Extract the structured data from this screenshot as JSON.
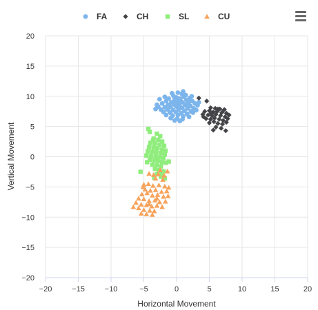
{
  "menu": {
    "icon": "hamburger-menu-icon"
  },
  "chart_data": {
    "type": "scatter",
    "title": "",
    "xlabel": "Horizontal Movement",
    "ylabel": "Vertical Movement",
    "xlim": [
      -20,
      20
    ],
    "ylim": [
      -20,
      20
    ],
    "x_ticks": [
      "−20",
      "−15",
      "−10",
      "−5",
      "0",
      "5",
      "10",
      "15",
      "20"
    ],
    "y_ticks": [
      "20",
      "15",
      "10",
      "5",
      "0",
      "−5",
      "−10",
      "−15",
      "−20"
    ],
    "grid": true,
    "legend_position": "top",
    "series": [
      {
        "name": "FA",
        "color": "#7cb5ec",
        "marker": "circle",
        "points": [
          [
            0.2,
            10.6
          ],
          [
            0.8,
            10.4
          ],
          [
            1.4,
            10.2
          ],
          [
            -0.5,
            10.1
          ],
          [
            0.0,
            9.8
          ],
          [
            1.1,
            9.9
          ],
          [
            2.0,
            9.7
          ],
          [
            -1.2,
            9.6
          ],
          [
            -0.3,
            9.5
          ],
          [
            0.5,
            9.6
          ],
          [
            1.5,
            9.4
          ],
          [
            2.4,
            9.2
          ],
          [
            -1.6,
            9.2
          ],
          [
            -0.8,
            9.0
          ],
          [
            0.1,
            9.1
          ],
          [
            0.9,
            9.0
          ],
          [
            1.8,
            8.9
          ],
          [
            2.8,
            8.8
          ],
          [
            -2.2,
            8.8
          ],
          [
            -1.3,
            8.6
          ],
          [
            -0.4,
            8.7
          ],
          [
            0.4,
            8.6
          ],
          [
            1.3,
            8.5
          ],
          [
            2.1,
            8.4
          ],
          [
            3.2,
            8.5
          ],
          [
            -2.8,
            8.3
          ],
          [
            -1.8,
            8.2
          ],
          [
            -0.9,
            8.2
          ],
          [
            0.0,
            8.3
          ],
          [
            0.8,
            8.1
          ],
          [
            1.7,
            8.0
          ],
          [
            2.6,
            8.0
          ],
          [
            -3.2,
            7.9
          ],
          [
            -2.4,
            7.8
          ],
          [
            -1.4,
            7.8
          ],
          [
            -0.5,
            7.7
          ],
          [
            0.3,
            7.8
          ],
          [
            1.2,
            7.6
          ],
          [
            2.2,
            7.5
          ],
          [
            3.0,
            7.7
          ],
          [
            -2.0,
            7.4
          ],
          [
            -1.0,
            7.3
          ],
          [
            -0.1,
            7.4
          ],
          [
            0.7,
            7.2
          ],
          [
            1.6,
            7.1
          ],
          [
            2.5,
            7.3
          ],
          [
            -1.6,
            6.9
          ],
          [
            -0.6,
            6.8
          ],
          [
            0.2,
            6.9
          ],
          [
            1.0,
            6.7
          ],
          [
            1.9,
            6.6
          ],
          [
            -0.9,
            6.4
          ],
          [
            0.1,
            6.3
          ],
          [
            0.9,
            6.2
          ],
          [
            -0.3,
            6.0
          ],
          [
            0.5,
            5.9
          ],
          [
            -1.8,
            9.9
          ],
          [
            2.3,
            10.0
          ],
          [
            -2.6,
            9.5
          ],
          [
            3.4,
            9.0
          ],
          [
            -3.0,
            8.6
          ],
          [
            1.0,
            10.8
          ],
          [
            -0.7,
            10.5
          ],
          [
            0.4,
            8.0
          ],
          [
            -0.2,
            8.5
          ],
          [
            1.5,
            8.7
          ],
          [
            -1.1,
            8.4
          ],
          [
            0.6,
            9.3
          ],
          [
            -0.4,
            9.1
          ],
          [
            1.9,
            9.1
          ]
        ]
      },
      {
        "name": "CH",
        "color": "#434348",
        "marker": "diamond",
        "points": [
          [
            3.4,
            9.7
          ],
          [
            4.6,
            9.2
          ],
          [
            5.2,
            8.1
          ],
          [
            5.9,
            8.0
          ],
          [
            6.6,
            7.9
          ],
          [
            7.3,
            7.8
          ],
          [
            4.3,
            7.5
          ],
          [
            5.0,
            7.6
          ],
          [
            5.6,
            7.4
          ],
          [
            6.2,
            7.5
          ],
          [
            6.9,
            7.3
          ],
          [
            7.6,
            7.2
          ],
          [
            4.0,
            7.0
          ],
          [
            4.8,
            6.9
          ],
          [
            5.4,
            6.8
          ],
          [
            6.0,
            7.0
          ],
          [
            6.7,
            6.8
          ],
          [
            7.4,
            6.6
          ],
          [
            8.0,
            6.9
          ],
          [
            4.5,
            6.3
          ],
          [
            5.2,
            6.2
          ],
          [
            5.8,
            6.4
          ],
          [
            6.5,
            6.2
          ],
          [
            7.1,
            6.0
          ],
          [
            7.8,
            6.3
          ],
          [
            5.0,
            5.6
          ],
          [
            5.7,
            5.8
          ],
          [
            6.3,
            5.5
          ],
          [
            7.0,
            5.4
          ],
          [
            7.6,
            5.7
          ],
          [
            6.0,
            4.9
          ],
          [
            6.8,
            4.7
          ],
          [
            7.5,
            4.3
          ],
          [
            5.6,
            4.4
          ],
          [
            6.3,
            7.9
          ],
          [
            5.3,
            7.2
          ],
          [
            4.1,
            6.6
          ],
          [
            7.2,
            7.7
          ]
        ]
      },
      {
        "name": "SL",
        "color": "#90ed7d",
        "marker": "square",
        "points": [
          [
            -4.3,
            4.6
          ],
          [
            -4.1,
            4.1
          ],
          [
            -3.0,
            3.8
          ],
          [
            -2.5,
            3.4
          ],
          [
            -3.5,
            3.0
          ],
          [
            -2.8,
            2.8
          ],
          [
            -2.2,
            2.5
          ],
          [
            -4.0,
            2.3
          ],
          [
            -3.3,
            2.2
          ],
          [
            -2.6,
            2.0
          ],
          [
            -1.9,
            1.8
          ],
          [
            -4.2,
            1.6
          ],
          [
            -3.5,
            1.5
          ],
          [
            -2.9,
            1.4
          ],
          [
            -2.2,
            1.2
          ],
          [
            -1.7,
            1.0
          ],
          [
            -4.4,
            0.9
          ],
          [
            -3.7,
            0.8
          ],
          [
            -3.1,
            0.7
          ],
          [
            -2.4,
            0.6
          ],
          [
            -1.8,
            0.4
          ],
          [
            -4.6,
            0.2
          ],
          [
            -3.9,
            0.1
          ],
          [
            -3.2,
            0.0
          ],
          [
            -2.6,
            -0.1
          ],
          [
            -2.0,
            -0.2
          ],
          [
            -4.1,
            -0.5
          ],
          [
            -3.4,
            -0.6
          ],
          [
            -2.8,
            -0.7
          ],
          [
            -2.2,
            -0.9
          ],
          [
            -1.6,
            -1.0
          ],
          [
            -3.7,
            -1.3
          ],
          [
            -3.0,
            -1.4
          ],
          [
            -2.4,
            -1.6
          ],
          [
            -3.3,
            -2.0
          ],
          [
            -2.7,
            -2.2
          ],
          [
            -2.0,
            -2.4
          ],
          [
            -5.5,
            -2.5
          ],
          [
            -3.0,
            -2.9
          ],
          [
            -2.4,
            -3.3
          ],
          [
            -1.8,
            -3.6
          ],
          [
            -3.4,
            -3.5
          ],
          [
            -1.2,
            -0.8
          ],
          [
            -3.6,
            2.7
          ],
          [
            -2.3,
            -2.6
          ],
          [
            -4.5,
            -0.9
          ]
        ]
      },
      {
        "name": "CU",
        "color": "#f7a35c",
        "marker": "triangle",
        "points": [
          [
            -2.5,
            -2.2
          ],
          [
            -1.4,
            -2.4
          ],
          [
            -4.2,
            -2.8
          ],
          [
            -3.5,
            -3.0
          ],
          [
            -2.8,
            -2.9
          ],
          [
            -1.9,
            -3.1
          ],
          [
            -3.2,
            -3.6
          ],
          [
            -2.1,
            -3.8
          ],
          [
            -5.0,
            -4.6
          ],
          [
            -4.3,
            -4.5
          ],
          [
            -3.6,
            -4.8
          ],
          [
            -2.7,
            -4.7
          ],
          [
            -1.8,
            -4.9
          ],
          [
            -1.2,
            -5.1
          ],
          [
            -4.8,
            -5.4
          ],
          [
            -4.0,
            -5.6
          ],
          [
            -3.2,
            -5.5
          ],
          [
            -2.3,
            -5.8
          ],
          [
            -1.5,
            -5.7
          ],
          [
            -5.3,
            -6.2
          ],
          [
            -4.5,
            -6.0
          ],
          [
            -3.7,
            -6.4
          ],
          [
            -2.9,
            -6.3
          ],
          [
            -2.0,
            -6.6
          ],
          [
            -1.3,
            -6.5
          ],
          [
            -5.8,
            -6.9
          ],
          [
            -5.0,
            -7.0
          ],
          [
            -4.2,
            -7.3
          ],
          [
            -3.3,
            -7.2
          ],
          [
            -2.6,
            -7.5
          ],
          [
            -1.7,
            -7.4
          ],
          [
            -6.2,
            -7.6
          ],
          [
            -5.4,
            -7.9
          ],
          [
            -4.6,
            -8.0
          ],
          [
            -3.8,
            -8.2
          ],
          [
            -3.0,
            -8.1
          ],
          [
            -2.2,
            -8.3
          ],
          [
            -6.6,
            -8.3
          ],
          [
            -5.8,
            -8.5
          ],
          [
            -5.0,
            -8.8
          ],
          [
            -4.1,
            -8.9
          ],
          [
            -3.4,
            -9.0
          ],
          [
            -5.4,
            -9.4
          ],
          [
            -4.6,
            -9.5
          ],
          [
            -3.7,
            -9.6
          ],
          [
            -4.2,
            -7.8
          ],
          [
            -3.0,
            -6.9
          ],
          [
            -5.1,
            -5.0
          ]
        ]
      }
    ]
  }
}
